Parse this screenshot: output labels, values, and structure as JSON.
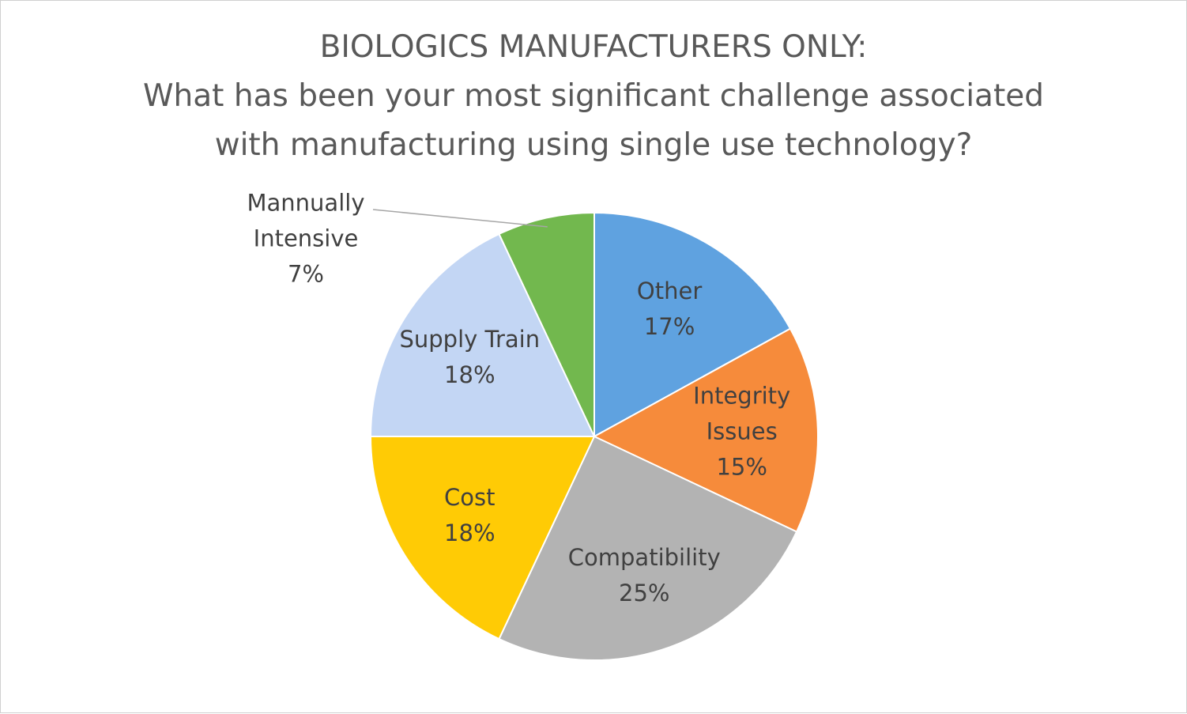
{
  "chart_data": {
    "type": "pie",
    "title": "BIOLOGICS MANUFACTURERS ONLY:",
    "subtitle": "What has been your most significant challenge associated with manufacturing using single use technology?",
    "categories": [
      "Other",
      "Integrity Issues",
      "Compatibility",
      "Cost",
      "Supply Train",
      "Mannually Intensive"
    ],
    "values": [
      17,
      15,
      25,
      18,
      18,
      7
    ],
    "value_labels": [
      "17%",
      "15%",
      "25%",
      "18%",
      "18%",
      "7%"
    ],
    "colors": [
      "#5fa2e0",
      "#f68b3b",
      "#b3b3b3",
      "#ffcb05",
      "#c3d6f4",
      "#72b84e"
    ]
  }
}
